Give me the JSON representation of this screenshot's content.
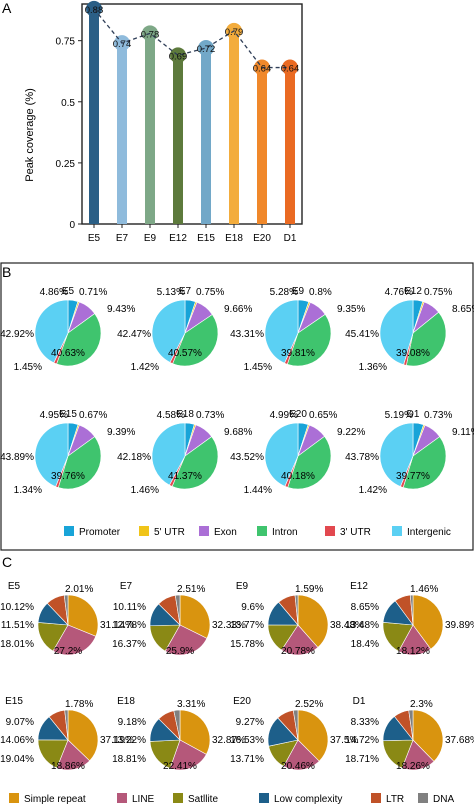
{
  "panel_labels": {
    "a": "A",
    "b": "B",
    "c": "C"
  },
  "colors": {
    "bars": [
      "#2b5f86",
      "#8fbbdc",
      "#7ea887",
      "#5d7a3c",
      "#72a8c8",
      "#f3ac3c",
      "#f0882a",
      "#ea6a22"
    ],
    "genomic": [
      "#18a4d8",
      "#f0c419",
      "#ab6fd6",
      "#3fc46e",
      "#e2484f",
      "#5bd0f3"
    ],
    "repeat": [
      "#d9940f",
      "#b5587a",
      "#8a8915",
      "#1d5f8a",
      "#c05228",
      "#808080"
    ]
  },
  "chart_data": [
    {
      "type": "bar",
      "ylabel": "Peak coverage (%)",
      "ylim": [
        0,
        0.9
      ],
      "yticks": [
        0,
        0.25,
        0.5,
        0.75
      ],
      "ytick_labels": [
        "0",
        "0.25",
        "0.5",
        "0.75"
      ],
      "categories": [
        "E5",
        "E7",
        "E9",
        "E12",
        "E15",
        "E18",
        "E20",
        "D1"
      ],
      "values": [
        0.88,
        0.74,
        0.78,
        0.69,
        0.72,
        0.79,
        0.64,
        0.64
      ],
      "value_labels": [
        "0.88",
        "0.74",
        "0.78",
        "0.69",
        "0.72",
        "0.79",
        "0.64",
        "0.64"
      ],
      "trend_line": "dashed"
    },
    {
      "type": "pie",
      "legend": [
        "Promoter",
        "5' UTR",
        "Exon",
        "Intron",
        "3' UTR",
        "Intergenic"
      ],
      "legend_placement": "bottom",
      "pies": [
        {
          "title": "E5",
          "values": [
            4.86,
            0.71,
            9.43,
            40.63,
            1.45,
            42.92
          ],
          "labels": [
            "4.86%",
            "0.71%",
            "9.43%",
            "40.63%",
            "1.45%",
            "42.92%"
          ]
        },
        {
          "title": "E7",
          "values": [
            5.13,
            0.75,
            9.66,
            40.57,
            1.42,
            42.47
          ],
          "labels": [
            "5.13%",
            "0.75%",
            "9.66%",
            "40.57%",
            "1.42%",
            "42.47%"
          ]
        },
        {
          "title": "E9",
          "values": [
            5.28,
            0.8,
            9.35,
            39.81,
            1.45,
            43.31
          ],
          "labels": [
            "5.28%",
            "0.8%",
            "9.35%",
            "39.81%",
            "1.45%",
            "43.31%"
          ]
        },
        {
          "title": "E12",
          "values": [
            4.76,
            0.75,
            8.65,
            39.08,
            1.36,
            45.41
          ],
          "labels": [
            "4.76%",
            "0.75%",
            "8.65%",
            "39.08%",
            "1.36%",
            "45.41%"
          ]
        },
        {
          "title": "E15",
          "values": [
            4.95,
            0.67,
            9.39,
            39.76,
            1.34,
            43.89
          ],
          "labels": [
            "4.95%",
            "0.67%",
            "9.39%",
            "39.76%",
            "1.34%",
            "43.89%"
          ]
        },
        {
          "title": "E18",
          "values": [
            4.58,
            0.73,
            9.68,
            41.37,
            1.46,
            42.18
          ],
          "labels": [
            "4.58%",
            "0.73%",
            "9.68%",
            "41.37%",
            "1.46%",
            "42.18%"
          ]
        },
        {
          "title": "E20",
          "values": [
            4.99,
            0.65,
            9.22,
            40.18,
            1.44,
            43.52
          ],
          "labels": [
            "4.99%",
            "0.65%",
            "9.22%",
            "40.18%",
            "1.44%",
            "43.52%"
          ]
        },
        {
          "title": "D1",
          "values": [
            5.19,
            0.73,
            9.11,
            39.77,
            1.42,
            43.78
          ],
          "labels": [
            "5.19%",
            "0.73%",
            "9.11%",
            "39.77%",
            "1.42%",
            "43.78%"
          ]
        }
      ]
    },
    {
      "type": "pie",
      "legend": [
        "Simple repeat",
        "LINE",
        "Satllite",
        "Low complexity",
        "LTR",
        "DNA"
      ],
      "legend_placement": "bottom",
      "pies": [
        {
          "title": "E5",
          "values": [
            31.14,
            27.2,
            18.01,
            11.51,
            10.12,
            2.01
          ],
          "labels": [
            "31.14%",
            "27.2%",
            "18.01%",
            "11.51%",
            "10.12%",
            "2.01%"
          ]
        },
        {
          "title": "E7",
          "values": [
            32.33,
            25.9,
            16.37,
            12.78,
            10.11,
            2.51
          ],
          "labels": [
            "32.33%",
            "25.9%",
            "16.37%",
            "12.78%",
            "10.11%",
            "2.51%"
          ]
        },
        {
          "title": "E9",
          "values": [
            38.48,
            20.78,
            15.78,
            13.77,
            9.6,
            1.59
          ],
          "labels": [
            "38.48%",
            "20.78%",
            "15.78%",
            "13.77%",
            "9.6%",
            "1.59%"
          ]
        },
        {
          "title": "E12",
          "values": [
            39.89,
            18.12,
            18.4,
            13.48,
            8.65,
            1.46
          ],
          "labels": [
            "39.89%",
            "18.12%",
            "18.4%",
            "13.48%",
            "8.65%",
            "1.46%"
          ]
        },
        {
          "title": "E15",
          "values": [
            37.19,
            18.86,
            19.04,
            14.06,
            9.07,
            1.78
          ],
          "labels": [
            "37.19%",
            "18.86%",
            "19.04%",
            "14.06%",
            "9.07%",
            "1.78%"
          ]
        },
        {
          "title": "E18",
          "values": [
            32.87,
            22.41,
            18.81,
            13.22,
            9.18,
            3.31
          ],
          "labels": [
            "32.87%",
            "22.41%",
            "18.81%",
            "13.22%",
            "9.18%",
            "3.31%"
          ]
        },
        {
          "title": "E20",
          "values": [
            37.5,
            20.46,
            13.71,
            16.53,
            9.27,
            2.52
          ],
          "labels": [
            "37.5%",
            "20.46%",
            "13.71%",
            "16.53%",
            "9.27%",
            "2.52%"
          ]
        },
        {
          "title": "D1",
          "values": [
            37.68,
            18.26,
            18.71,
            14.72,
            8.33,
            2.3
          ],
          "labels": [
            "37.68%",
            "18.26%",
            "18.71%",
            "14.72%",
            "8.33%",
            "2.3%"
          ]
        }
      ]
    }
  ]
}
